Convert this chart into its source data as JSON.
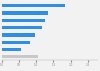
{
  "values": [
    1.85,
    1.35,
    1.25,
    1.18,
    0.95,
    0.82,
    0.55,
    1.05
  ],
  "colors": [
    "#2F8EE8",
    "#2F8EE8",
    "#2F8EE8",
    "#2F8EE8",
    "#2F8EE8",
    "#2F8EE8",
    "#2F8EE8",
    "#c8c8c8"
  ],
  "xlim": [
    0,
    2.8
  ],
  "ylim": [
    -0.5,
    7.5
  ],
  "background_color": "#f2f2f2",
  "bar_height": 0.45,
  "figsize": [
    1.0,
    0.71
  ],
  "dpi": 100
}
